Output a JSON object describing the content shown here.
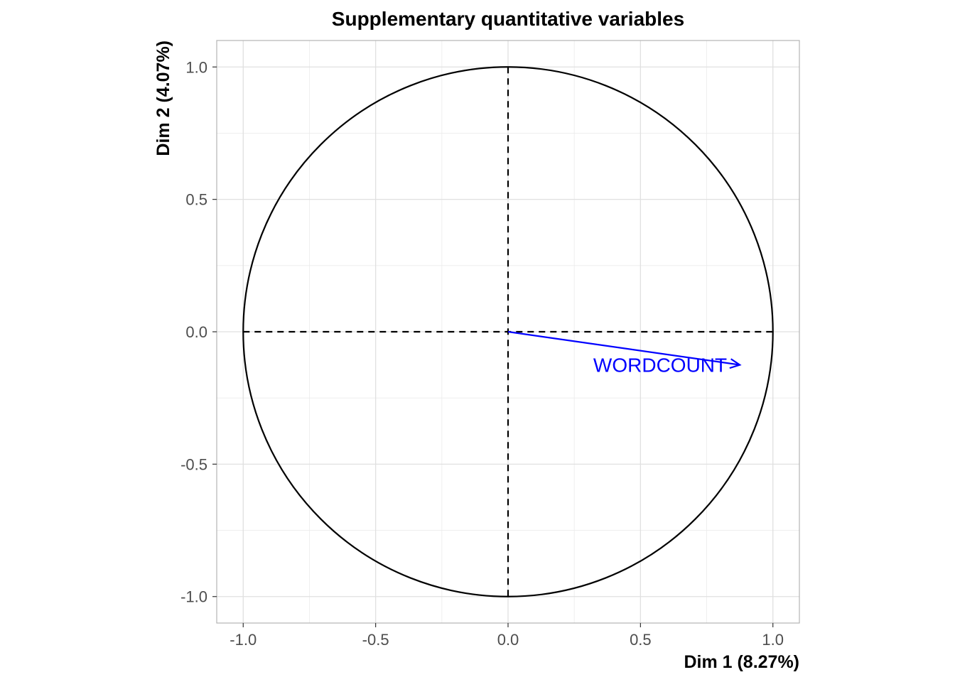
{
  "chart_data": {
    "type": "scatter",
    "title": "Supplementary quantitative variables",
    "xlabel": "Dim 1 (8.27%)",
    "ylabel": "Dim 2 (4.07%)",
    "xlim": [
      -1.1,
      1.1
    ],
    "ylim": [
      -1.1,
      1.1
    ],
    "x_ticks": [
      -1.0,
      -0.5,
      0.0,
      0.5,
      1.0
    ],
    "y_ticks": [
      -1.0,
      -0.5,
      0.0,
      0.5,
      1.0
    ],
    "x_tick_labels": [
      "-1.0",
      "-0.5",
      "0.0",
      "0.5",
      "1.0"
    ],
    "y_tick_labels": [
      "-1.0",
      "-0.5",
      "0.0",
      "0.5",
      "1.0"
    ],
    "grid": true,
    "correlation_circle_radius": 1.0,
    "reference_lines": {
      "x": 0,
      "y": 0,
      "style": "dashed"
    },
    "vectors": [
      {
        "label": "WORDCOUNT",
        "x": 0.875,
        "y": -0.125,
        "color": "#0000ff"
      }
    ]
  },
  "colors": {
    "background": "#ffffff",
    "grid": "#ebebeb",
    "panel_border": "#b3b3b3",
    "circle": "#000000",
    "tick_text": "#4d4d4d",
    "vector": "#0000ff"
  }
}
